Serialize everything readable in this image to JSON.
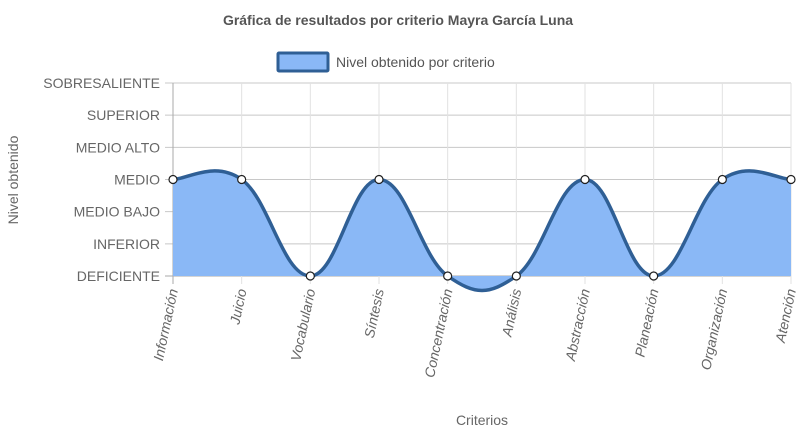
{
  "chart_data": {
    "type": "area",
    "title": "Gráfica de resultados por criterio Mayra García Luna",
    "xlabel": "Criterios",
    "ylabel": "Nivel obtenido",
    "categories": [
      "Información",
      "Juicio",
      "Vocabulario",
      "Síntesis",
      "Concentración",
      "Análisis",
      "Abstracción",
      "Planeación",
      "Organización",
      "Atención"
    ],
    "y_levels": [
      "DEFICIENTE",
      "INFERIOR",
      "MEDIO BAJO",
      "MEDIO",
      "MEDIO ALTO",
      "SUPERIOR",
      "SOBRESALIENTE"
    ],
    "ylim": [
      0,
      6
    ],
    "series": [
      {
        "name": "Nivel obtenido por criterio",
        "values": [
          3,
          3,
          0,
          3,
          0,
          0,
          3,
          0,
          3,
          3
        ],
        "value_labels": [
          "MEDIO",
          "MEDIO",
          "DEFICIENTE",
          "MEDIO",
          "DEFICIENTE",
          "DEFICIENTE",
          "MEDIO",
          "DEFICIENTE",
          "MEDIO",
          "MEDIO"
        ]
      }
    ],
    "legend_position": "top",
    "grid": true,
    "colors": {
      "fill": "#8ab8f6",
      "line": "#2f5f95",
      "point_fill": "#ffffff",
      "point_stroke": "#1f1f1f",
      "grid": "#dddddd",
      "axis": "#666666"
    }
  }
}
